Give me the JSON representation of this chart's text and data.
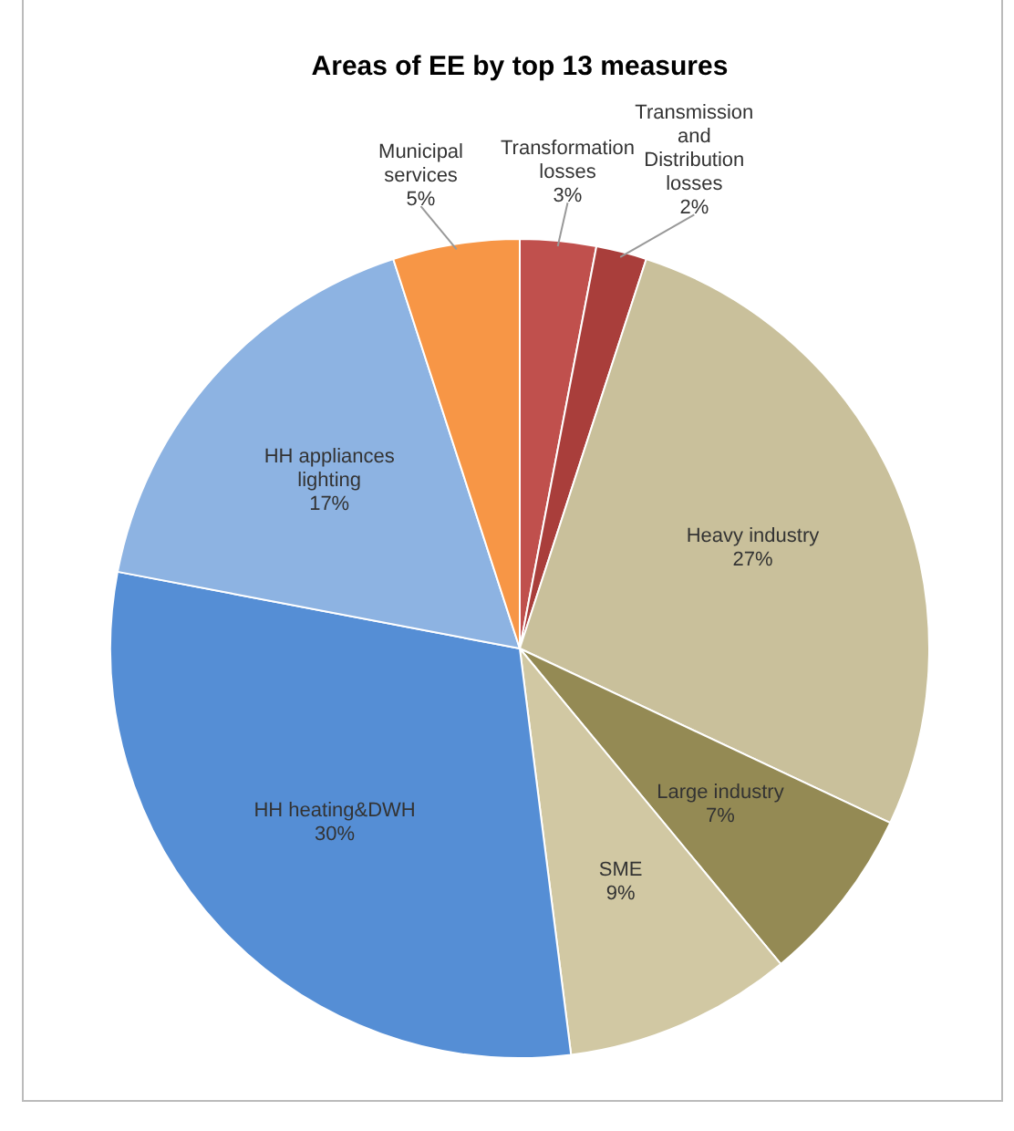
{
  "chart_data": {
    "type": "pie",
    "title": "Areas of EE by top 13 measures",
    "categories": [
      "Transformation losses",
      "Transmission and Distribution losses",
      "Heavy industry",
      "Large industry",
      "SME",
      "HH heating&DWH",
      "HH appliances lighting",
      "Municipal services"
    ],
    "values": [
      3,
      2,
      27,
      7,
      9,
      30,
      17,
      5
    ],
    "value_labels": [
      "3%",
      "2%",
      "27%",
      "7%",
      "9%",
      "30%",
      "17%",
      "5%"
    ],
    "colors": [
      "#c0504d",
      "#a93e3b",
      "#c9c09b",
      "#948a54",
      "#d1c8a3",
      "#558ed5",
      "#8db3e2",
      "#f79646"
    ],
    "legend": false
  }
}
